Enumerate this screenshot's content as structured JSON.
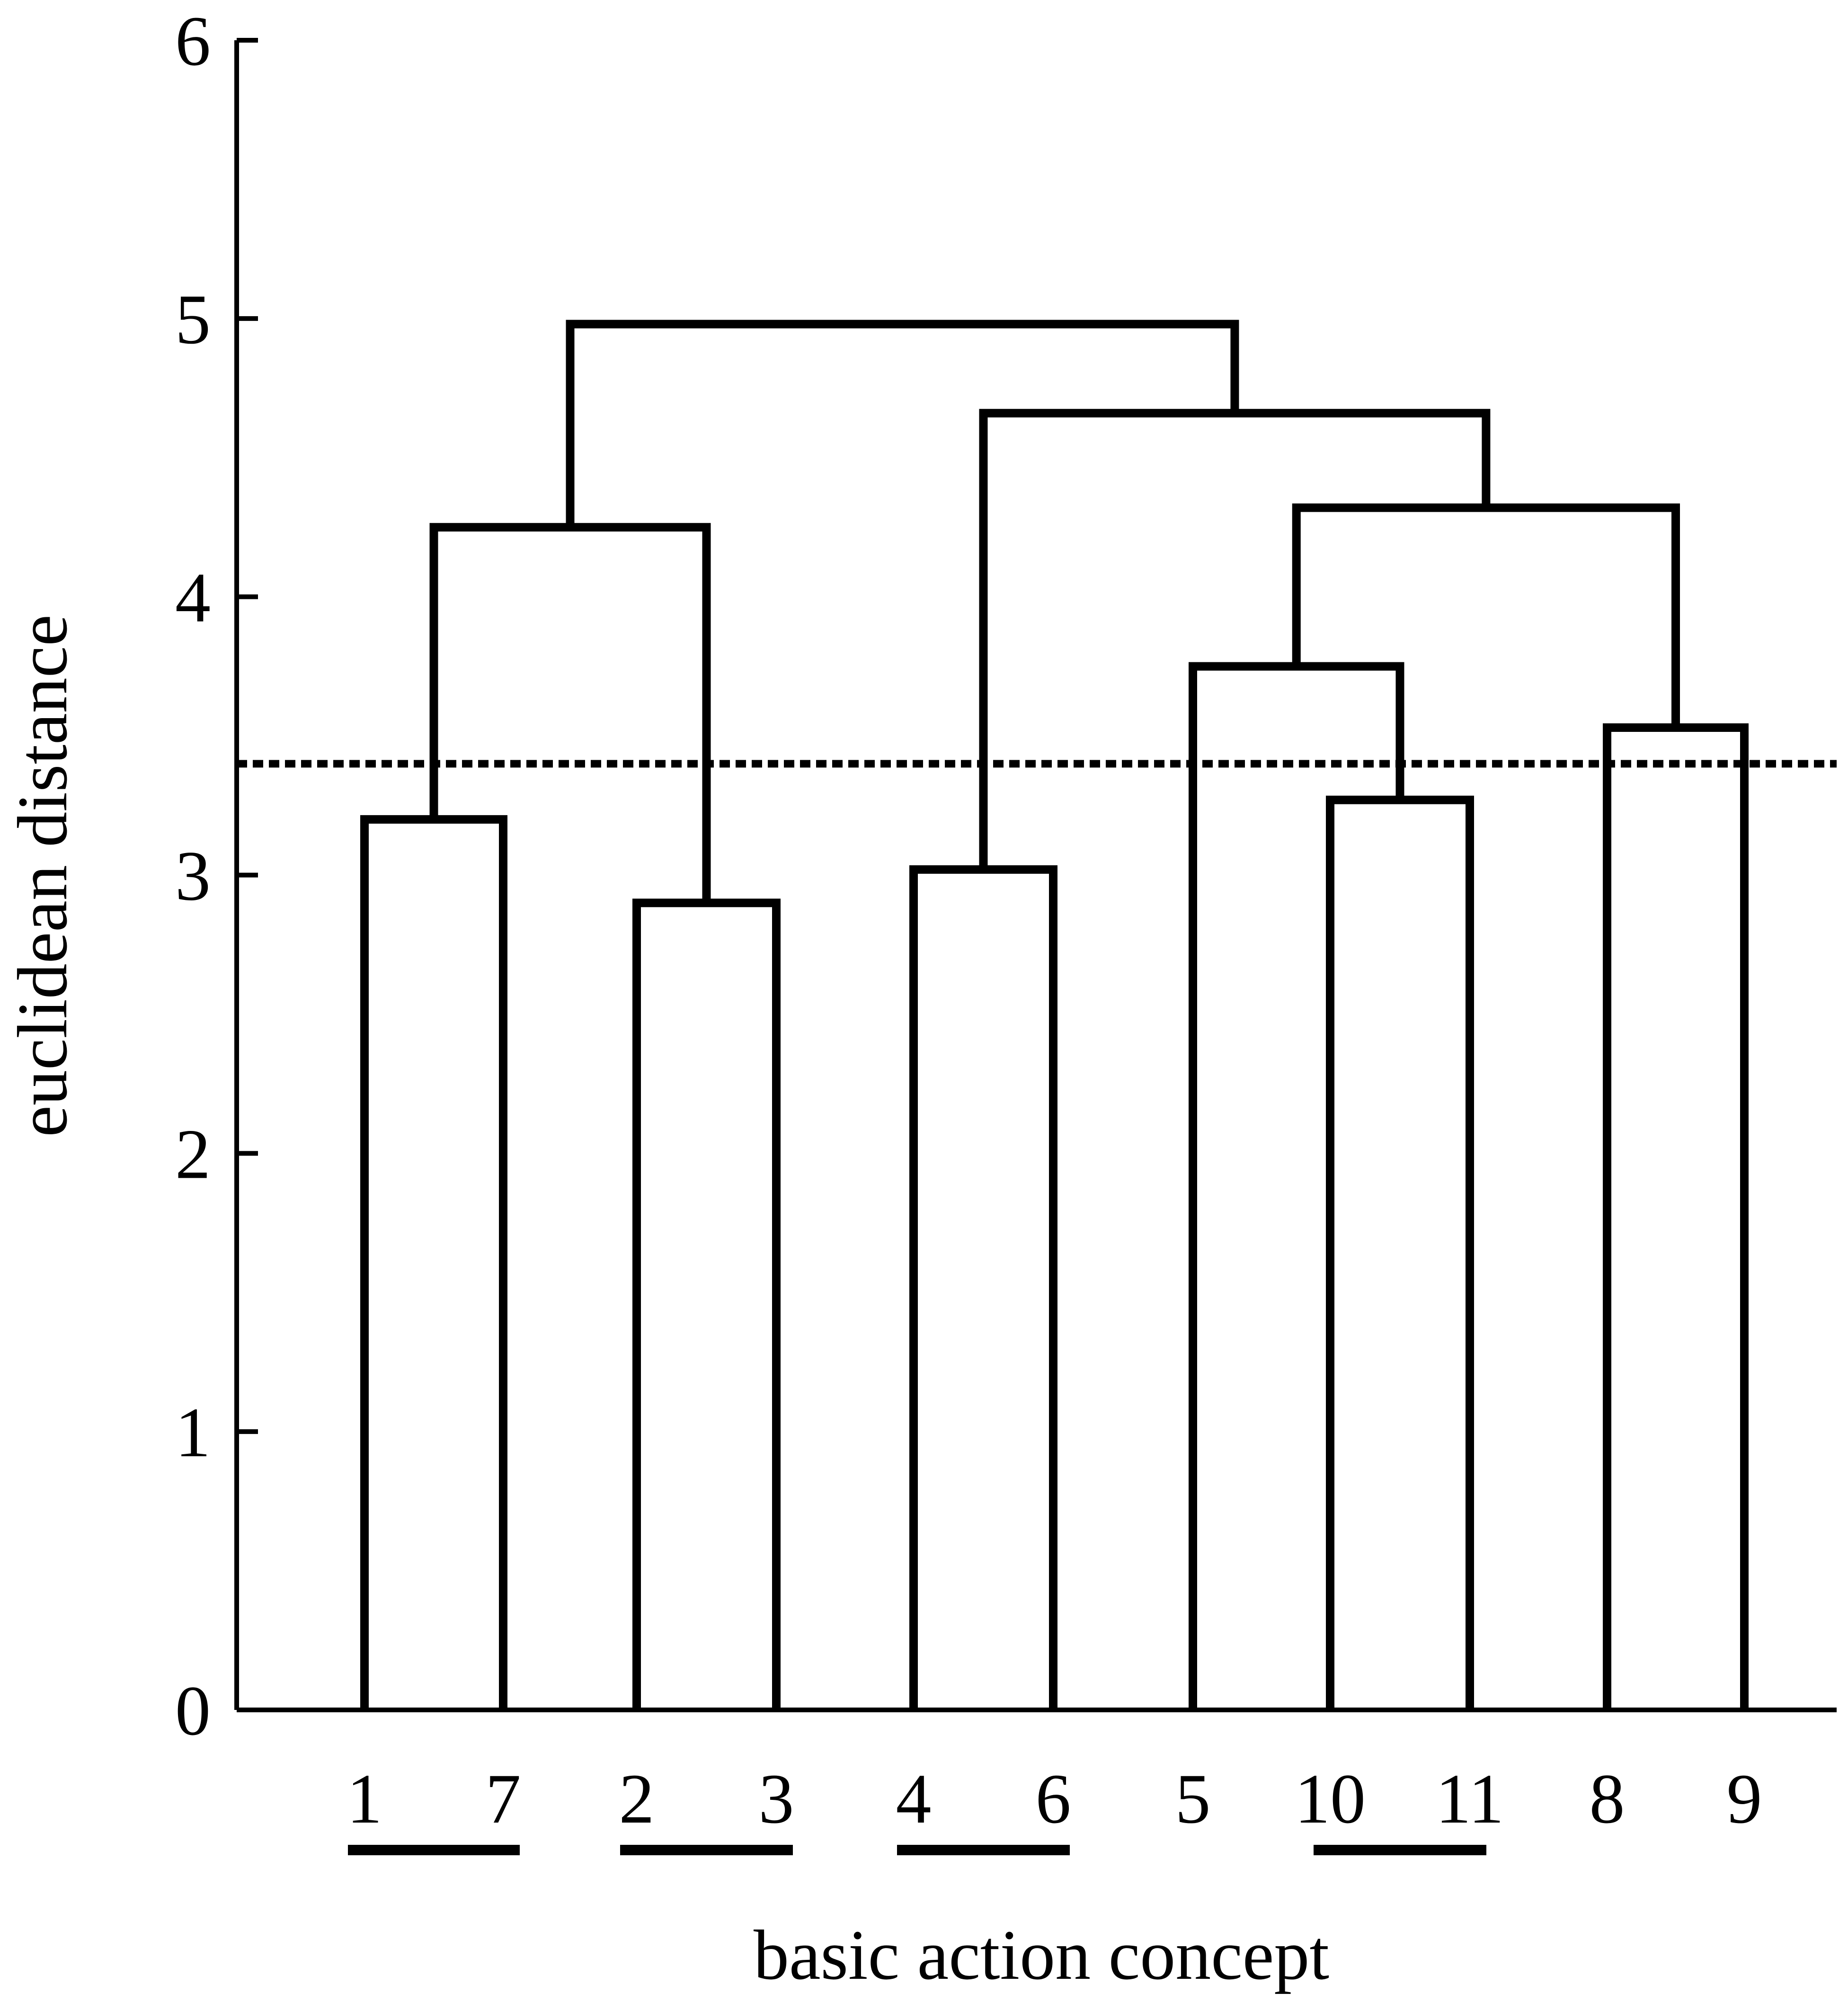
{
  "chart_data": {
    "type": "dendrogram",
    "xlabel": "basic action concept",
    "ylabel": "euclidean distance",
    "ylim": [
      0,
      6
    ],
    "yticks": [
      "0",
      "1",
      "2",
      "3",
      "4",
      "5",
      "6"
    ],
    "leaves": [
      "1",
      "7",
      "2",
      "3",
      "4",
      "6",
      "5",
      "10",
      "11",
      "8",
      "9"
    ],
    "merges": [
      {
        "left": "1",
        "right": "7",
        "height": 3.2
      },
      {
        "left": "2",
        "right": "3",
        "height": 2.9
      },
      {
        "left": "4",
        "right": "6",
        "height": 3.02
      },
      {
        "left": "10",
        "right": "11",
        "height": 3.27
      },
      {
        "left": "8",
        "right": "9",
        "height": 3.53
      },
      {
        "left": "5",
        "right": "10,11",
        "height": 3.75
      },
      {
        "left": "5,10,11",
        "right": "8,9",
        "height": 4.32
      },
      {
        "left": "1,7",
        "right": "2,3",
        "height": 4.25
      },
      {
        "left": "4,6",
        "right": "5,10,11,8,9",
        "height": 4.66
      },
      {
        "left": "1,7,2,3",
        "right": "4,6,5,10,11,8,9",
        "height": 4.98
      }
    ],
    "cut_threshold": 3.4,
    "underlined_groups": [
      [
        "1",
        "7"
      ],
      [
        "2",
        "3"
      ],
      [
        "4",
        "6"
      ],
      [
        "10",
        "11"
      ]
    ],
    "grid": false,
    "legend": "none",
    "colors": {
      "line": "#000000",
      "background": "#ffffff"
    }
  }
}
